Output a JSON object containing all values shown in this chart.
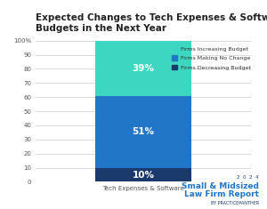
{
  "title": "Expected Changes to Tech Expenses & Software\nBudgets in the Next Year",
  "category": "Tech Expenses & Software",
  "segments": [
    {
      "label": "Firms Decreasing Budget",
      "value": 10,
      "color": "#1a3a6b"
    },
    {
      "label": "Firms Making No Change",
      "value": 51,
      "color": "#2176c7"
    },
    {
      "label": "Firms Increasing Budget",
      "value": 39,
      "color": "#3dd6c0"
    }
  ],
  "ylim": [
    0,
    100
  ],
  "yticks": [
    0,
    10,
    20,
    30,
    40,
    50,
    60,
    70,
    80,
    90,
    100
  ],
  "ytick_labels": [
    "0",
    "10",
    "20",
    "30",
    "40",
    "50",
    "60",
    "70",
    "80",
    "90",
    "100%"
  ],
  "bar_width": 0.45,
  "background_color": "#ffffff",
  "text_color": "#ffffff",
  "title_color": "#222222",
  "title_fontsize": 7.5,
  "tick_fontsize": 5,
  "watermark_line1": "2  0  2  4",
  "watermark_line2": "Small & Midsized",
  "watermark_line3": "Law Firm Report",
  "watermark_line4": "BY PRACTICEPANTHER",
  "watermark_color_dark": "#1a3a6b",
  "watermark_color_blue": "#2176c7"
}
